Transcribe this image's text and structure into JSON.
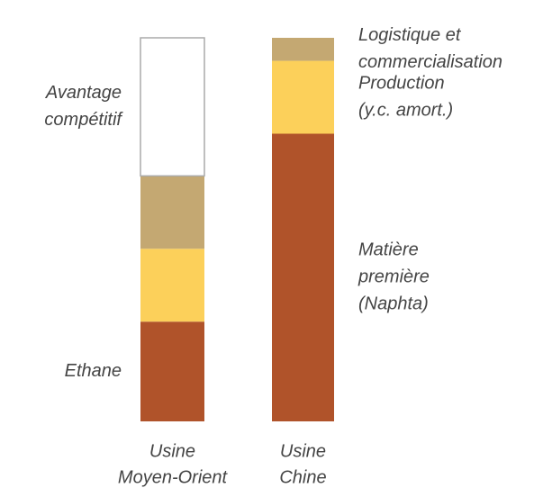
{
  "chart_data": {
    "type": "stacked_bar",
    "categories": [
      [
        "Usine",
        "Moyen-Orient"
      ],
      [
        "Usine",
        "Chine"
      ]
    ],
    "ylim": [
      0,
      100
    ],
    "series": [
      {
        "labels": [
          [
            "Ethane"
          ],
          [
            "Matière",
            "première",
            "(Naphta)"
          ]
        ],
        "color": "#b0532a",
        "values": [
          26,
          75
        ]
      },
      {
        "labels": [
          null,
          [
            "Production",
            "(y.c. amort.)"
          ]
        ],
        "color": "#fcd05a",
        "values": [
          19,
          19
        ]
      },
      {
        "labels": [
          null,
          [
            "Logistique et",
            "commercialisation"
          ]
        ],
        "color": "#c4a872",
        "values": [
          19,
          6
        ]
      },
      {
        "labels": [
          [
            "Avantage",
            "compétitif"
          ],
          null
        ],
        "color": "#ffffff",
        "stroke": "#aaaaaa",
        "values": [
          36,
          null
        ]
      }
    ]
  }
}
